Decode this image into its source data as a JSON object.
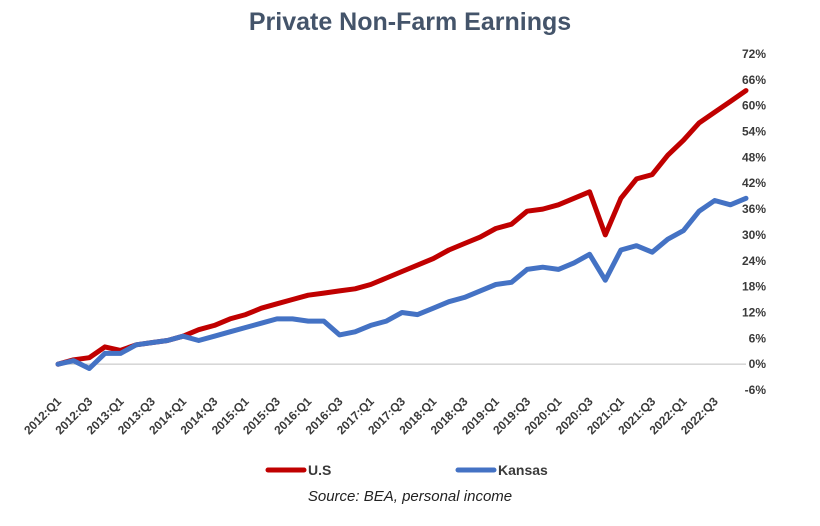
{
  "chart_data": {
    "type": "line",
    "title": "Private Non-Farm Earnings",
    "source": "Source: BEA, personal income",
    "xlabel": "",
    "ylabel": "",
    "ylim": [
      -6,
      72
    ],
    "y_ticks": [
      72,
      66,
      60,
      54,
      48,
      42,
      36,
      30,
      24,
      18,
      12,
      6,
      0,
      -6
    ],
    "y_tick_labels": [
      "72%",
      "66%",
      "60%",
      "54%",
      "48%",
      "42%",
      "36%",
      "30%",
      "24%",
      "18%",
      "12%",
      "6%",
      "0%",
      "-6%"
    ],
    "x_tick_labels": [
      "2012:Q1",
      "2012:Q3",
      "2013:Q1",
      "2013:Q3",
      "2014:Q1",
      "2014:Q3",
      "2015:Q1",
      "2015:Q3",
      "2016:Q1",
      "2016:Q3",
      "2017:Q1",
      "2017:Q3",
      "2018:Q1",
      "2018:Q3",
      "2019:Q1",
      "2019:Q3",
      "2020:Q1",
      "2020:Q3",
      "2021:Q1",
      "2021:Q3",
      "2022:Q1",
      "2022:Q3"
    ],
    "legend_position": "bottom",
    "grid": false,
    "series": [
      {
        "name": "U.S",
        "color": "#C00000",
        "values": [
          0,
          1,
          1.5,
          4,
          3.2,
          4.5,
          5,
          5.5,
          6.5,
          8,
          9,
          10.5,
          11.5,
          13,
          14,
          15,
          16,
          16.5,
          17,
          17.5,
          18.5,
          20,
          21.5,
          23,
          24.5,
          26.5,
          28,
          29.5,
          31.5,
          32.5,
          35.5,
          36,
          37,
          38.5,
          40,
          30,
          38.5,
          43,
          44,
          48.5,
          52,
          56,
          58.5,
          61,
          63.5
        ]
      },
      {
        "name": "Kansas",
        "color": "#4472C4",
        "values": [
          0,
          0.8,
          -1,
          2.5,
          2.5,
          4.5,
          5,
          5.5,
          6.5,
          5.5,
          6.5,
          7.5,
          8.5,
          9.5,
          10.5,
          10.5,
          10,
          10,
          6.8,
          7.5,
          9,
          10,
          12,
          11.5,
          13,
          14.5,
          15.5,
          17,
          18.5,
          19,
          22,
          22.5,
          22,
          23.5,
          25.5,
          19.5,
          26.5,
          27.5,
          26,
          29,
          31,
          35.5,
          38,
          37,
          38.5
        ]
      }
    ]
  }
}
